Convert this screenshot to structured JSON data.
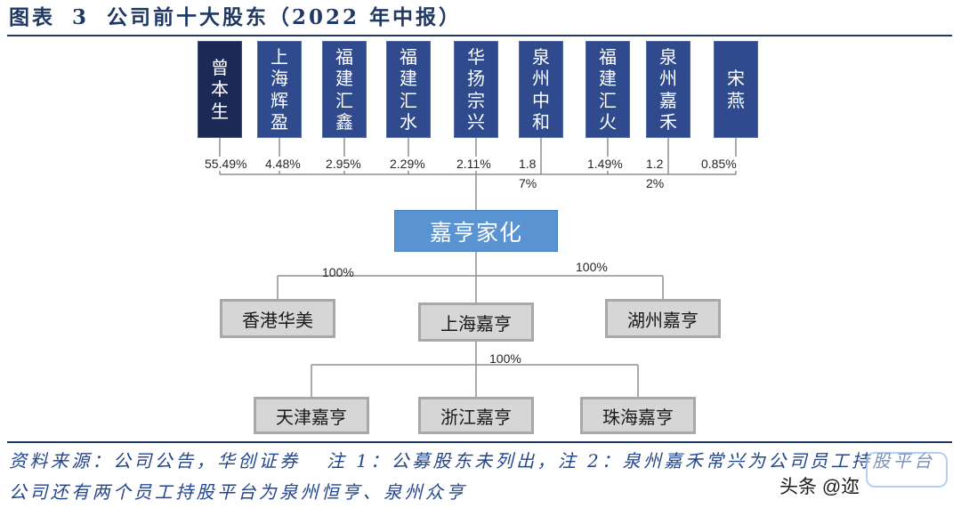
{
  "title": {
    "figure_label": "图表 3",
    "text": "公司前十大股东（2022 年中报）"
  },
  "shareholders": [
    {
      "name": "曾本生",
      "stake": "55.49%"
    },
    {
      "name": "上海辉盈",
      "stake": "4.48%"
    },
    {
      "name": "福建汇鑫",
      "stake": "2.95%"
    },
    {
      "name": "福建汇水",
      "stake": "2.29%"
    },
    {
      "name": "华扬宗兴",
      "stake": "2.11%"
    },
    {
      "name": "泉州中和",
      "stake": "1.87%"
    },
    {
      "name": "福建汇火",
      "stake": "1.49%"
    },
    {
      "name": "泉州嘉禾",
      "stake": "1.22%"
    },
    {
      "name": "宋燕",
      "stake": "0.85%"
    }
  ],
  "company": {
    "name": "嘉亨家化"
  },
  "subsidiaries": {
    "stake_left": "100%",
    "stake_right": "100%",
    "items": [
      {
        "name": "香港华美"
      },
      {
        "name": "上海嘉亨"
      },
      {
        "name": "湖州嘉亨"
      }
    ]
  },
  "sub_subsidiaries": {
    "stake": "100%",
    "items": [
      {
        "name": "天津嘉亨"
      },
      {
        "name": "浙江嘉亨"
      },
      {
        "name": "珠海嘉亨"
      }
    ]
  },
  "source": {
    "line1_source": "资料来源：公司公告，华创证券",
    "line1_notes": "注 1：公募股东未列出，注 2：泉州嘉禾常兴为公司员工持股平台",
    "line2": "公司还有两个员工持股平台为泉州恒亨、泉州众亨"
  },
  "watermark": {
    "text": "头条 @迩"
  },
  "colors": {
    "title": "#1f3864",
    "rule": "#1f3864",
    "connector": "#8f8f8f",
    "top_holder_box": "#1b2a55",
    "holder_box": "#2f4b8e",
    "company_box": "#5a93d2",
    "entity_box": "#d6d6d6",
    "entity_border": "#a8a8a8",
    "source_text": "#23468c"
  }
}
